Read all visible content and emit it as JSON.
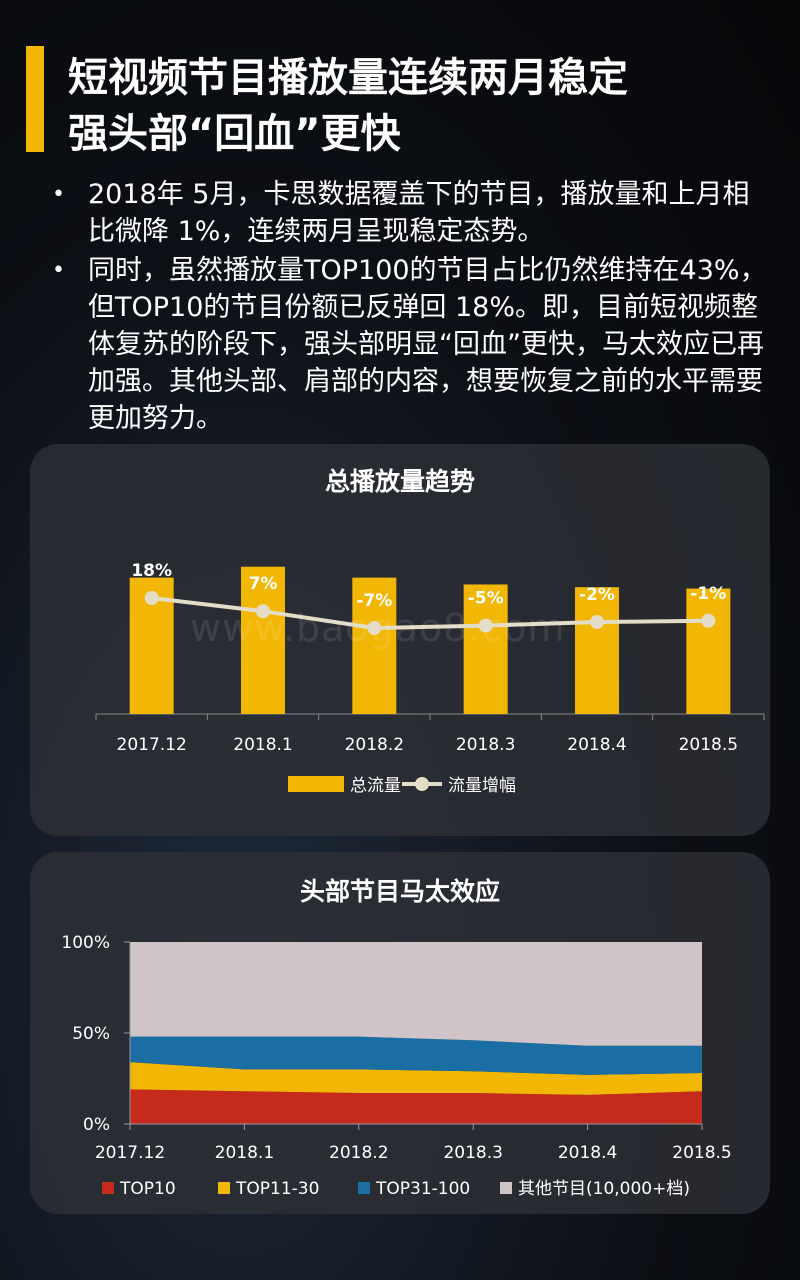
{
  "header": {
    "title_line1": "短视频节目播放量连续两月稳定",
    "title_line2": "强头部“回血”更快"
  },
  "bullets": [
    {
      "marker": "•",
      "text": "2018年 5月，卡思数据覆盖下的节目，播放量和上月相比微降 1%，连续两月呈现稳定态势。"
    },
    {
      "marker": "•",
      "text": "同时，虽然播放量TOP100的节目占比仍然维持在43%，但TOP10的节目份额已反弹回 18%。即，目前短视频整体复苏的阶段下，强头部明显“回血”更快，马太效应已再加强。其他头部、肩部的内容，想要恢复之前的水平需要更加努力。"
    }
  ],
  "watermark": "www.baogao8.com",
  "colors": {
    "accent": "#f2b705",
    "line": "#e3ddc8",
    "top10": "#c62a1c",
    "top11_30": "#f2b705",
    "top31_100": "#1a6ea3",
    "others": "#cfc5c8"
  },
  "chart_data": [
    {
      "type": "bar",
      "title": "总播放量趋势",
      "categories": [
        "2017.12",
        "2018.1",
        "2018.2",
        "2018.3",
        "2018.4",
        "2018.5"
      ],
      "series": [
        {
          "name": "总流量",
          "kind": "bar",
          "values": [
            100,
            108,
            100,
            95,
            93,
            92
          ]
        },
        {
          "name": "流量增幅",
          "kind": "line",
          "values": [
            18,
            7,
            -7,
            -5,
            -2,
            -1
          ],
          "labels": [
            "18%",
            "7%",
            "-7%",
            "-5%",
            "-2%",
            "-1%"
          ]
        }
      ],
      "grid": false,
      "legend": "bottom"
    },
    {
      "type": "area",
      "title": "头部节目马太效应",
      "x": [
        "2017.12",
        "2018.1",
        "2018.2",
        "2018.3",
        "2018.4",
        "2018.5"
      ],
      "yticks": [
        "0%",
        "50%",
        "100%"
      ],
      "ylim": [
        0,
        100
      ],
      "stacked": true,
      "series": [
        {
          "name": "TOP10",
          "values": [
            19,
            18,
            17,
            17,
            16,
            18
          ]
        },
        {
          "name": "TOP11-30",
          "values": [
            15,
            12,
            13,
            12,
            11,
            10
          ]
        },
        {
          "name": "TOP31-100",
          "values": [
            14,
            18,
            18,
            17,
            16,
            15
          ]
        },
        {
          "name": "其他节目(10,000+档)",
          "values": [
            52,
            52,
            52,
            54,
            57,
            57
          ]
        }
      ],
      "grid": false,
      "legend": "bottom"
    }
  ]
}
